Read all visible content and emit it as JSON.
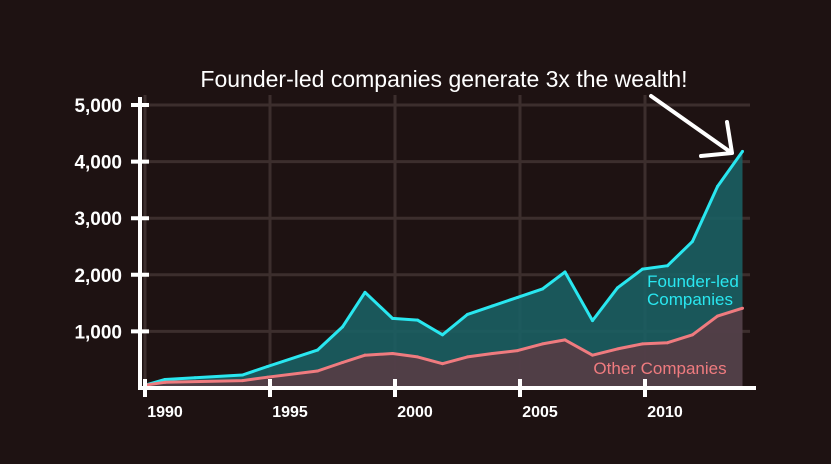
{
  "colors": {
    "background": "#1e1212",
    "grid": "#3c2e2d",
    "axis": "#ffffff",
    "founder_line": "#29e7f0",
    "founder_fill": "#1a5f63",
    "other_line": "#ef7b7f",
    "other_fill": "#5a3a43",
    "annotation": "#ffffff"
  },
  "chart_data": {
    "type": "area",
    "title": "",
    "annotation": "Founder-led companies generate 3x the wealth!",
    "xlabel": "",
    "ylabel": "",
    "xlim": [
      1989.8,
      2014.6
    ],
    "ylim": [
      0,
      5000
    ],
    "x_ticks": [
      1990,
      1995,
      2000,
      2005,
      2010
    ],
    "y_ticks": [
      1000,
      2000,
      3000,
      4000,
      5000
    ],
    "y_tick_labels": [
      "1,000",
      "2,000",
      "3,000",
      "4,000",
      "5,000"
    ],
    "grid": true,
    "series": [
      {
        "name": "Founder-led Companies",
        "label_lines": [
          "Founder-led",
          "Companies"
        ],
        "x": [
          1990,
          1990.8,
          1992,
          1993.9,
          1994.9,
          1996.9,
          1997.9,
          1998.8,
          1999.9,
          2000.9,
          2001.9,
          2002.9,
          2003.9,
          2004.9,
          2005.9,
          2006.8,
          2007.9,
          2008.9,
          2009.9,
          2010.9,
          2011.9,
          2012.9,
          2013.9
        ],
        "y": [
          50,
          150,
          180,
          230,
          380,
          670,
          1080,
          1690,
          1230,
          1200,
          940,
          1300,
          1450,
          1600,
          1750,
          2050,
          1190,
          1770,
          2100,
          2160,
          2590,
          3560,
          4180
        ]
      },
      {
        "name": "Other Companies",
        "label_lines": [
          "Other Companies"
        ],
        "x": [
          1990,
          1990.8,
          1993.9,
          1994.9,
          1996.9,
          1997.9,
          1998.8,
          1999.9,
          2000.9,
          2001.9,
          2002.9,
          2003.9,
          2004.9,
          2005.9,
          2006.8,
          2007.9,
          2008.9,
          2009.9,
          2010.9,
          2011.9,
          2012.9,
          2013.9
        ],
        "y": [
          50,
          100,
          130,
          190,
          300,
          450,
          580,
          610,
          550,
          430,
          550,
          610,
          660,
          780,
          850,
          580,
          690,
          780,
          800,
          940,
          1270,
          1410
        ]
      }
    ]
  }
}
